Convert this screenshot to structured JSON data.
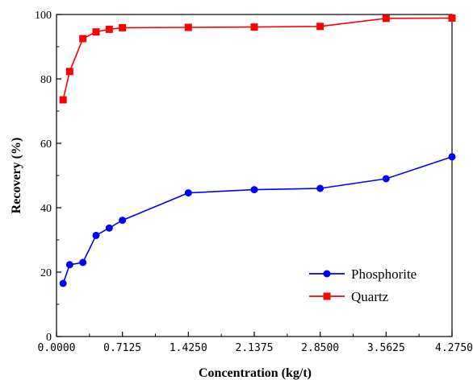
{
  "chart_data": {
    "type": "line",
    "title": "",
    "xlabel": "Concentration (kg/t)",
    "ylabel": "Recovery (%)",
    "xlim": [
      0,
      4.275
    ],
    "ylim": [
      0,
      100
    ],
    "x_ticks": [
      0.0,
      0.7125,
      1.425,
      2.1375,
      2.85,
      3.5625,
      4.275
    ],
    "x_tick_labels": [
      "0.0000",
      "0.7125",
      "1.4250",
      "2.1375",
      "2.8500",
      "3.5625",
      "4.2750"
    ],
    "y_ticks": [
      0,
      20,
      40,
      60,
      80,
      100
    ],
    "y_tick_labels": [
      "0",
      "20",
      "40",
      "60",
      "80",
      "100"
    ],
    "grid": false,
    "legend_position": "bottom-right",
    "series": [
      {
        "name": "Phosphorite",
        "color": "#0000ff",
        "marker": "circle",
        "x": [
          0.0713,
          0.1425,
          0.285,
          0.4275,
          0.57,
          0.7125,
          1.425,
          2.1375,
          2.85,
          3.5625,
          4.275
        ],
        "y": [
          16.5,
          22.3,
          23.0,
          31.4,
          33.7,
          36.1,
          44.6,
          45.6,
          46.0,
          49.0,
          55.8
        ]
      },
      {
        "name": "Quartz",
        "color": "#ff0000",
        "marker": "square",
        "x": [
          0.0713,
          0.1425,
          0.285,
          0.4275,
          0.57,
          0.7125,
          1.425,
          2.1375,
          2.85,
          3.5625,
          4.275
        ],
        "y": [
          73.5,
          82.3,
          92.5,
          94.6,
          95.4,
          95.9,
          96.0,
          96.1,
          96.3,
          98.8,
          98.9
        ]
      }
    ]
  }
}
